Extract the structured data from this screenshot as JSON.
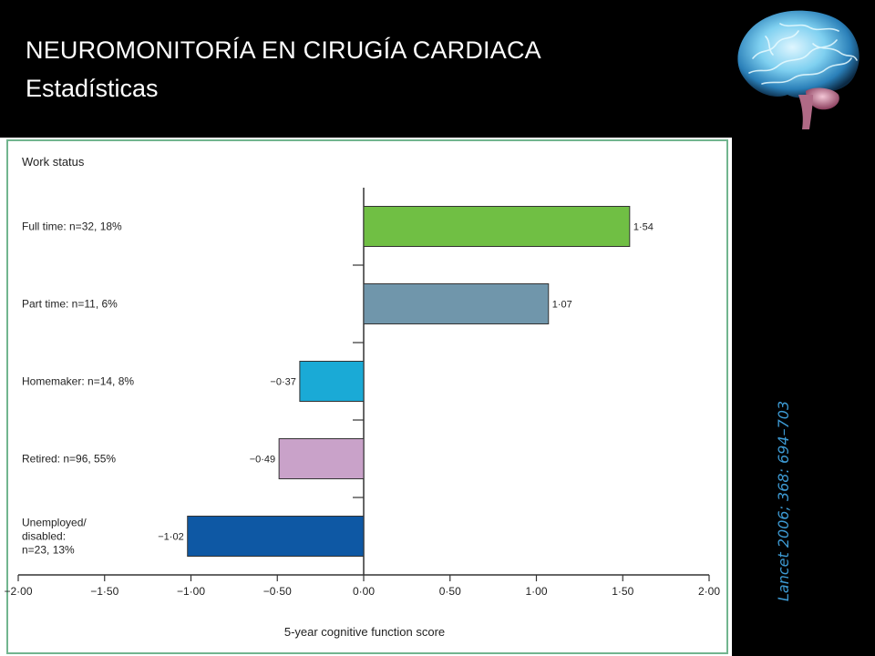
{
  "slide": {
    "title": "NEUROMONITORÍA EN CIRUGÍA CARDIACA",
    "subtitle": "Estadísticas",
    "citation": "Lancet 2006; 368: 694–703"
  },
  "icons": {
    "brain": "brain-image"
  },
  "colors": {
    "page_background": "#000000",
    "panel_border": "#72b58f",
    "citation": "#3d9ad3"
  },
  "chart_data": {
    "type": "bar",
    "orientation": "horizontal",
    "panel_title": "Work status",
    "categories": [
      "Full time: n=32, 18%",
      "Part time: n=11, 6%",
      "Homemaker: n=14, 8%",
      "Retired: n=96, 55%",
      "Unemployed/ disabled: n=23, 13%"
    ],
    "values": [
      1.54,
      1.07,
      -0.37,
      -0.49,
      -1.02
    ],
    "value_labels": [
      "1·54",
      "1·07",
      "−0·37",
      "−0·49",
      "−1·02"
    ],
    "bar_colors": [
      "#70bf44",
      "#7096ab",
      "#1aaad6",
      "#c9a2c9",
      "#0e58a4"
    ],
    "xlabel": "5-year cognitive function score",
    "xlim": [
      -2.0,
      2.0
    ],
    "xticks": [
      -2.0,
      -1.5,
      -1.0,
      -0.5,
      0.0,
      0.5,
      1.0,
      1.5,
      2.0
    ],
    "xtick_labels": [
      "−2·00",
      "−1·50",
      "−1·00",
      "−0·50",
      "0·00",
      "0·50",
      "1·00",
      "1·50",
      "2·00"
    ],
    "grid": false,
    "legend": "none"
  }
}
